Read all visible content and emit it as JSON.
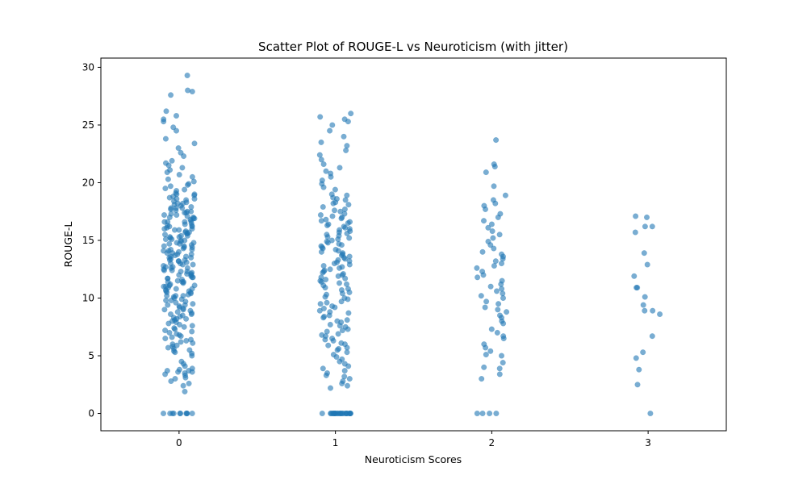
{
  "chart_data": {
    "type": "scatter",
    "title": "Scatter Plot of ROUGE-L vs Neuroticism (with jitter)",
    "xlabel": "Neuroticism Scores",
    "ylabel": "ROUGE-L",
    "x_ticks": [
      0,
      1,
      2,
      3
    ],
    "y_ticks": [
      0,
      5,
      10,
      15,
      20,
      25,
      30
    ],
    "xlim": [
      -0.5,
      3.5
    ],
    "ylim": [
      -1.5,
      30.8
    ],
    "jitter": 0.1,
    "point_color": "#1f77b4",
    "groups": [
      {
        "x": 0,
        "values": [
          0,
          0,
          0,
          0,
          0,
          0,
          0,
          0,
          0,
          0,
          1.9,
          2.4,
          2.6,
          2.8,
          3.0,
          3.1,
          3.3,
          3.4,
          3.5,
          3.6,
          3.6,
          3.7,
          3.7,
          3.8,
          3.9,
          4.1,
          4.3,
          4.5,
          5.0,
          5.2,
          5.3,
          5.4,
          5.5,
          5.6,
          5.7,
          5.8,
          5.9,
          6.0,
          6.1,
          6.2,
          6.3,
          6.4,
          6.5,
          6.6,
          6.7,
          6.8,
          6.9,
          7.0,
          7.1,
          7.2,
          7.3,
          7.4,
          7.5,
          7.6,
          7.7,
          7.8,
          7.9,
          8.0,
          8.1,
          8.2,
          8.3,
          8.4,
          8.5,
          8.6,
          8.7,
          8.8,
          8.9,
          9.0,
          9.1,
          9.2,
          9.3,
          9.4,
          9.5,
          9.6,
          9.7,
          9.8,
          9.9,
          10.0,
          10.1,
          10.2,
          10.3,
          10.4,
          10.5,
          10.6,
          10.7,
          10.8,
          10.9,
          11.0,
          11.1,
          11.2,
          11.3,
          11.4,
          11.5,
          11.6,
          11.7,
          11.8,
          11.9,
          12.0,
          12.1,
          12.2,
          12.3,
          12.4,
          12.5,
          12.6,
          12.7,
          12.8,
          12.9,
          13.0,
          13.1,
          13.2,
          13.3,
          13.4,
          13.5,
          13.6,
          13.7,
          13.8,
          13.9,
          14.0,
          14.1,
          14.2,
          14.3,
          14.4,
          14.5,
          14.6,
          14.7,
          14.8,
          14.9,
          15.0,
          15.1,
          15.2,
          15.3,
          15.4,
          15.5,
          15.6,
          15.7,
          15.8,
          15.9,
          16.0,
          16.1,
          16.2,
          16.3,
          16.4,
          16.5,
          16.6,
          16.7,
          16.8,
          16.9,
          17.0,
          17.1,
          17.2,
          17.3,
          17.4,
          17.5,
          17.6,
          17.7,
          17.8,
          17.9,
          18.0,
          18.1,
          18.2,
          18.3,
          18.4,
          18.5,
          18.6,
          18.7,
          18.8,
          18.9,
          19.0,
          10.2,
          10.5,
          10.8,
          11.1,
          11.4,
          11.7,
          12.0,
          12.3,
          12.6,
          12.9,
          13.2,
          13.5,
          13.8,
          14.1,
          14.4,
          14.7,
          15.0,
          15.3,
          15.6,
          15.9,
          12.1,
          12.4,
          12.7,
          13.0,
          13.3,
          13.6,
          13.9,
          14.2,
          14.5,
          14.8,
          15.1,
          15.4,
          15.7,
          16.0,
          16.3,
          16.6,
          16.9,
          17.2,
          17.5,
          17.8,
          8.2,
          8.6,
          9.0,
          9.4,
          9.8,
          10.2,
          10.6,
          11.0,
          11.4,
          11.8,
          16.2,
          16.6,
          17.0,
          17.4,
          17.8,
          18.2,
          18.6,
          19.0,
          19.4,
          19.8,
          19.1,
          19.3,
          19.5,
          19.7,
          19.9,
          20.1,
          20.3,
          20.5,
          20.7,
          20.9,
          21.1,
          21.3,
          21.5,
          21.7,
          21.9,
          22.3,
          22.6,
          23.0,
          23.4,
          23.8,
          24.5,
          24.8,
          25.3,
          25.5,
          25.8,
          26.2,
          27.6,
          27.9,
          28.0,
          29.3
        ]
      },
      {
        "x": 1,
        "values": [
          0,
          0,
          0,
          0,
          0,
          0,
          0,
          0,
          0,
          0,
          0,
          0,
          0,
          0,
          0,
          0,
          0,
          0,
          0,
          0,
          0,
          0,
          0,
          0,
          2.2,
          2.4,
          2.6,
          2.8,
          3.0,
          3.2,
          3.3,
          3.5,
          3.7,
          3.9,
          4.1,
          4.3,
          4.5,
          4.7,
          4.9,
          5.1,
          5.3,
          5.5,
          5.7,
          5.9,
          6.1,
          6.3,
          6.5,
          6.7,
          6.9,
          7.1,
          7.3,
          7.5,
          7.7,
          7.9,
          8.1,
          8.3,
          8.5,
          8.7,
          8.9,
          9.1,
          9.3,
          9.5,
          9.7,
          9.9,
          10.1,
          10.3,
          10.5,
          10.7,
          10.9,
          11.1,
          11.3,
          11.5,
          11.7,
          11.9,
          12.1,
          12.3,
          12.5,
          12.7,
          12.9,
          13.1,
          13.3,
          13.5,
          13.7,
          13.9,
          14.1,
          14.3,
          14.5,
          14.7,
          14.9,
          15.1,
          15.3,
          15.5,
          15.7,
          15.9,
          16.1,
          16.3,
          16.5,
          16.7,
          16.9,
          17.1,
          17.3,
          17.5,
          17.7,
          17.9,
          18.1,
          18.3,
          18.5,
          18.7,
          18.9,
          10.0,
          10.4,
          10.8,
          11.2,
          11.6,
          12.0,
          12.4,
          12.8,
          13.2,
          13.6,
          14.0,
          14.4,
          14.8,
          15.2,
          15.6,
          16.0,
          16.4,
          16.8,
          17.2,
          17.6,
          8.0,
          8.4,
          8.8,
          9.2,
          9.6,
          11.4,
          11.8,
          12.2,
          12.6,
          13.0,
          13.4,
          13.8,
          14.2,
          14.6,
          15.0,
          15.4,
          15.8,
          16.2,
          16.6,
          17.0,
          5.6,
          6.0,
          6.4,
          6.8,
          7.2,
          7.6,
          18.2,
          18.6,
          19.0,
          19.4,
          19.6,
          19.9,
          20.2,
          20.5,
          20.8,
          21.0,
          21.3,
          21.6,
          22.0,
          22.4,
          22.8,
          23.2,
          23.5,
          24.0,
          24.5,
          25.0,
          25.3,
          25.5,
          25.7,
          26.0
        ]
      },
      {
        "x": 2,
        "values": [
          0,
          0,
          0,
          0,
          3.0,
          3.4,
          3.9,
          4.0,
          4.4,
          5.0,
          5.1,
          5.4,
          5.7,
          6.0,
          6.5,
          6.7,
          7.0,
          7.3,
          7.8,
          8.0,
          8.3,
          8.5,
          8.8,
          9.0,
          9.2,
          9.5,
          9.7,
          10.0,
          10.2,
          10.4,
          10.6,
          10.8,
          11.0,
          11.2,
          11.5,
          11.8,
          12.0,
          12.3,
          12.6,
          12.8,
          13.0,
          13.2,
          13.4,
          13.6,
          13.8,
          14.0,
          14.3,
          14.6,
          14.9,
          15.2,
          15.5,
          15.8,
          16.1,
          16.4,
          16.7,
          17.0,
          17.3,
          17.7,
          18.0,
          18.2,
          18.5,
          18.9,
          19.7,
          20.9,
          21.4,
          21.6,
          23.7
        ]
      },
      {
        "x": 3,
        "values": [
          0,
          2.5,
          3.8,
          4.8,
          5.3,
          6.7,
          8.6,
          8.9,
          8.9,
          9.4,
          10.1,
          10.9,
          10.9,
          11.9,
          12.9,
          13.9,
          15.7,
          16.2,
          16.2,
          17.0,
          17.1
        ]
      }
    ]
  }
}
